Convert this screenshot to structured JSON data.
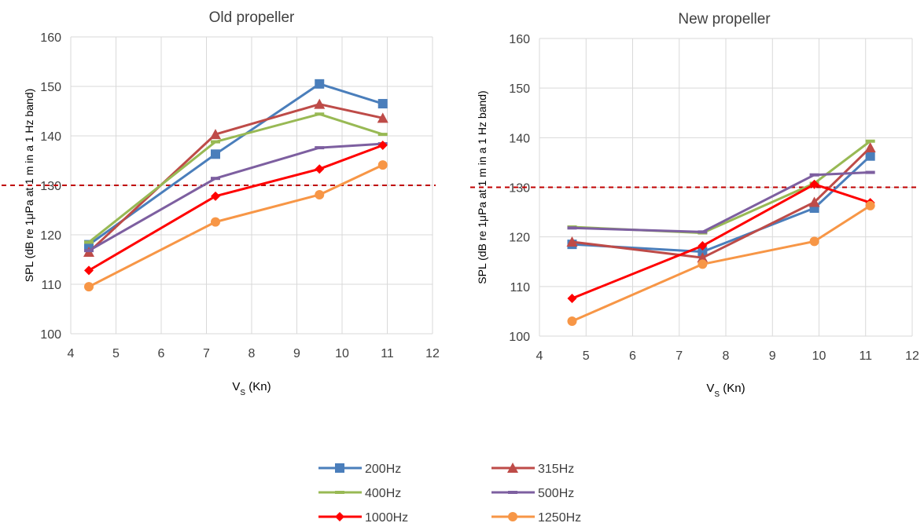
{
  "chart_data": [
    {
      "type": "line",
      "title": "Old propeller",
      "xlabel": "V",
      "xlabel_sub": "S",
      "xlabel_unit": " (Kn)",
      "ylabel": "SPL (dB re 1μPa at 1 m in a 1 Hz band)",
      "xlim": [
        4,
        12
      ],
      "ylim": [
        100,
        160
      ],
      "xticks": [
        4,
        5,
        6,
        7,
        8,
        9,
        10,
        11,
        12
      ],
      "yticks": [
        100,
        110,
        120,
        130,
        140,
        150,
        160
      ],
      "grid": true,
      "reference_line": {
        "y": 130,
        "style": "dashed",
        "color": "#c00000"
      },
      "series": [
        {
          "name": "200Hz",
          "color": "#4a7ebb",
          "marker": "square",
          "x": [
            4.4,
            7.2,
            9.5,
            10.9
          ],
          "y": [
            118.0,
            136.3,
            150.5,
            146.5
          ]
        },
        {
          "name": "315Hz",
          "color": "#be4b48",
          "marker": "triangle",
          "x": [
            4.4,
            7.2,
            9.5,
            10.9
          ],
          "y": [
            116.5,
            140.3,
            146.4,
            143.6
          ]
        },
        {
          "name": "400Hz",
          "color": "#98b954",
          "marker": "dash",
          "x": [
            4.4,
            7.2,
            9.5,
            10.9
          ],
          "y": [
            118.5,
            138.8,
            144.4,
            140.3
          ]
        },
        {
          "name": "500Hz",
          "color": "#7d5fa0",
          "marker": "dash",
          "x": [
            4.4,
            7.2,
            9.5,
            10.9
          ],
          "y": [
            116.8,
            131.4,
            137.6,
            138.4
          ]
        },
        {
          "name": "1000Hz",
          "color": "#ff0000",
          "marker": "diamond",
          "x": [
            4.4,
            7.2,
            9.5,
            10.9
          ],
          "y": [
            112.8,
            127.8,
            133.3,
            138.1
          ]
        },
        {
          "name": "1250Hz",
          "color": "#f79646",
          "marker": "circle",
          "x": [
            4.4,
            7.2,
            9.5,
            10.9
          ],
          "y": [
            109.5,
            122.6,
            128.1,
            134.1
          ]
        }
      ]
    },
    {
      "type": "line",
      "title": "New propeller",
      "xlabel": "V",
      "xlabel_sub": "S",
      "xlabel_unit": " (Kn)",
      "ylabel": "SPL (dB re 1μPa at 1 m in a 1 Hz band)",
      "xlim": [
        4,
        12
      ],
      "ylim": [
        100,
        160
      ],
      "xticks": [
        4,
        5,
        6,
        7,
        8,
        9,
        10,
        11,
        12
      ],
      "yticks": [
        100,
        110,
        120,
        130,
        140,
        150,
        160
      ],
      "grid": true,
      "reference_line": {
        "y": 130,
        "style": "dashed",
        "color": "#c00000"
      },
      "series": [
        {
          "name": "200Hz",
          "color": "#4a7ebb",
          "marker": "square",
          "x": [
            4.7,
            7.5,
            9.9,
            11.1
          ],
          "y": [
            118.5,
            117.0,
            125.8,
            136.3
          ]
        },
        {
          "name": "315Hz",
          "color": "#be4b48",
          "marker": "triangle",
          "x": [
            4.7,
            7.5,
            9.9,
            11.1
          ],
          "y": [
            119.0,
            115.8,
            127.0,
            138.0
          ]
        },
        {
          "name": "400Hz",
          "color": "#98b954",
          "marker": "dash",
          "x": [
            4.7,
            7.5,
            9.9,
            11.1
          ],
          "y": [
            122.0,
            120.8,
            130.8,
            139.3
          ]
        },
        {
          "name": "500Hz",
          "color": "#7d5fa0",
          "marker": "dash",
          "x": [
            4.7,
            7.5,
            9.9,
            11.1
          ],
          "y": [
            121.8,
            121.0,
            132.5,
            133.0
          ]
        },
        {
          "name": "1000Hz",
          "color": "#ff0000",
          "marker": "diamond",
          "x": [
            4.7,
            7.5,
            9.9,
            11.1
          ],
          "y": [
            107.6,
            118.2,
            130.6,
            126.9
          ]
        },
        {
          "name": "1250Hz",
          "color": "#f79646",
          "marker": "circle",
          "x": [
            4.7,
            7.5,
            9.9,
            11.1
          ],
          "y": [
            103.0,
            114.5,
            119.1,
            126.3
          ]
        }
      ]
    }
  ],
  "legend": {
    "placement": "bottom-center",
    "entries": [
      "200Hz",
      "315Hz",
      "400Hz",
      "500Hz",
      "1000Hz",
      "1250Hz"
    ]
  }
}
